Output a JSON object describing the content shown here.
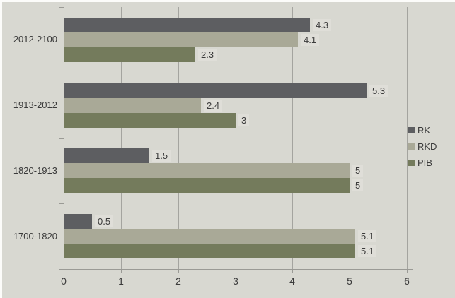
{
  "chart_data": {
    "type": "bar",
    "orientation": "horizontal",
    "title": "",
    "categories": [
      "2012-2100",
      "1913-2012",
      "1820-1913",
      "1700-1820"
    ],
    "series": [
      {
        "name": "RK",
        "color": "#5d5e61",
        "values": [
          4.3,
          5.3,
          1.5,
          0.5
        ]
      },
      {
        "name": "RKD",
        "color": "#a9a997",
        "values": [
          4.1,
          2.4,
          5,
          5.1
        ]
      },
      {
        "name": "PIB",
        "color": "#747b5c",
        "values": [
          2.3,
          3,
          5,
          5.1
        ]
      }
    ],
    "xlabel": "",
    "ylabel": "",
    "xlim": [
      0,
      6
    ],
    "x_ticks": [
      "0",
      "1",
      "2",
      "3",
      "4",
      "5",
      "6"
    ],
    "grid": true,
    "data_labels_shown": true,
    "legend_position": "right"
  },
  "colors": {
    "background": "#d8d8d1",
    "gridline": "#a4a49f",
    "axis_line": "#9a9a95",
    "text": "#3b3b3b",
    "value_label_background": "#dfded8",
    "page_edge": "#fcfcfa"
  }
}
